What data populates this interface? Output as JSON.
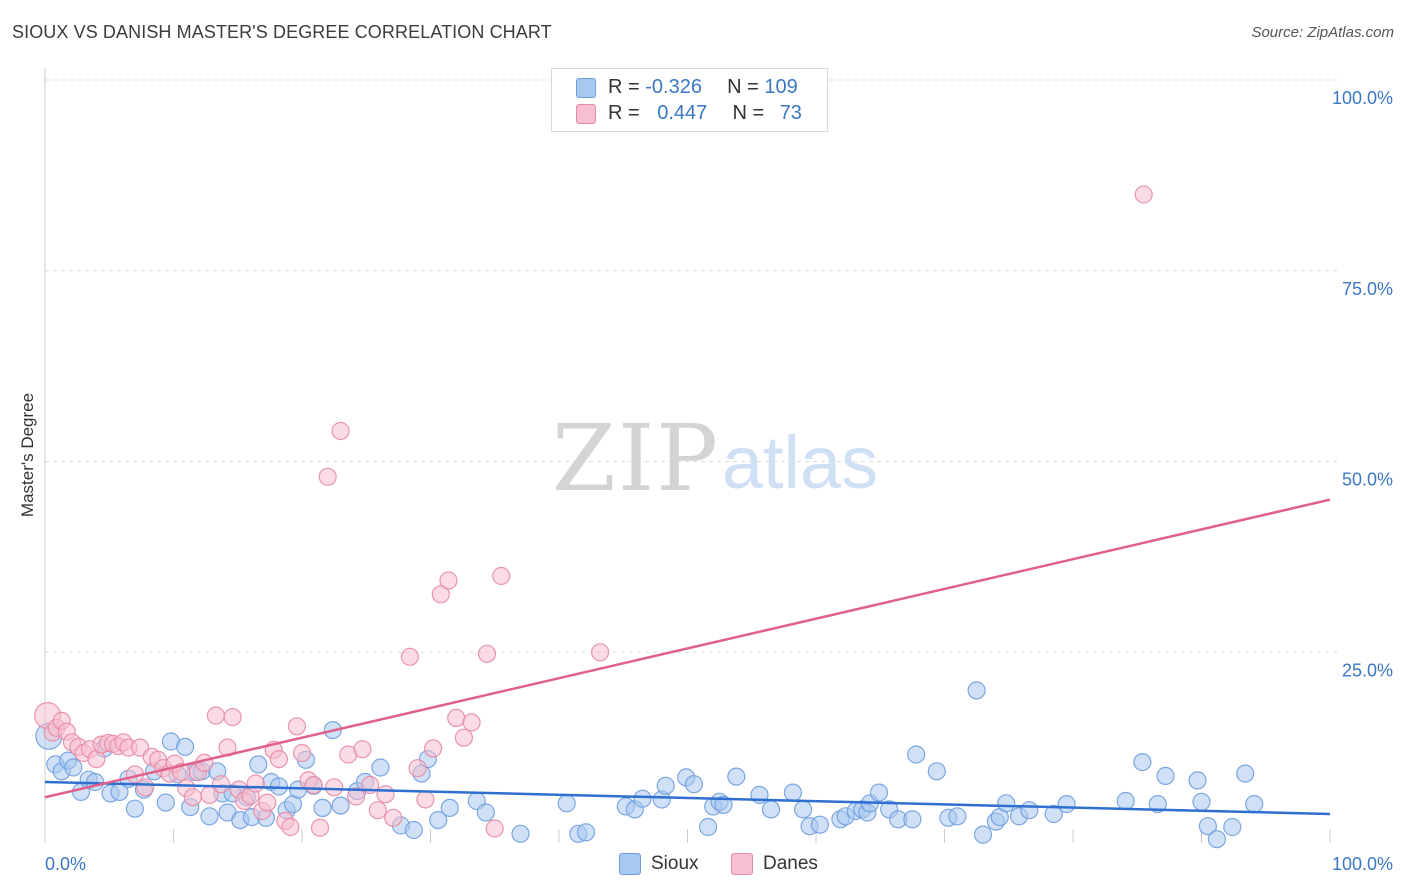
{
  "title": "SIOUX VS DANISH MASTER'S DEGREE CORRELATION CHART",
  "source": "Source: ZipAtlas.com",
  "watermark": {
    "zip": "ZIP",
    "atlas": "atlas"
  },
  "legend": {
    "rows": [
      {
        "r_label": "R =",
        "r_value": "-0.326",
        "n_label": "N =",
        "n_value": "109",
        "color": "#a9c8f0",
        "border": "#6f9fde"
      },
      {
        "r_label": "R =",
        "r_value": "0.447",
        "n_label": "N =",
        "n_value": "73",
        "color": "#f7bfd0",
        "border": "#e889a6"
      }
    ]
  },
  "bottom_legend": [
    {
      "label": "Sioux",
      "color": "#a9c8f0",
      "border": "#6f9fde"
    },
    {
      "label": "Danes",
      "color": "#f7bfd0",
      "border": "#e889a6"
    }
  ],
  "chart_data": {
    "type": "scatter",
    "title": "SIOUX VS DANISH MASTER'S DEGREE CORRELATION CHART",
    "xlabel": "",
    "ylabel": "Master's Degree",
    "xlim": [
      0,
      100
    ],
    "ylim": [
      0,
      100
    ],
    "x_tick_labels": [
      "0.0%",
      "100.0%"
    ],
    "y_ticks": [
      25,
      50,
      75,
      100
    ],
    "y_tick_labels": [
      "25.0%",
      "50.0%",
      "75.0%",
      "100.0%"
    ],
    "grid": true,
    "series": [
      {
        "name": "Sioux",
        "color": "#6f9fde",
        "fill": "#a9c8f0",
        "trend": [
          [
            0,
            8.0
          ],
          [
            100,
            3.8
          ]
        ],
        "points": [
          [
            0.3,
            14.0
          ],
          [
            0.8,
            10.3
          ],
          [
            1.3,
            9.4
          ],
          [
            1.8,
            10.8
          ],
          [
            2.2,
            9.9
          ],
          [
            2.8,
            6.7
          ],
          [
            3.4,
            8.3
          ],
          [
            3.9,
            8.0
          ],
          [
            4.6,
            12.4
          ],
          [
            5.1,
            6.5
          ],
          [
            5.8,
            6.7
          ],
          [
            6.5,
            8.4
          ],
          [
            7.0,
            4.5
          ],
          [
            7.7,
            7.0
          ],
          [
            8.5,
            9.4
          ],
          [
            9.4,
            5.3
          ],
          [
            9.8,
            13.3
          ],
          [
            10.3,
            9.0
          ],
          [
            10.9,
            12.6
          ],
          [
            11.3,
            4.7
          ],
          [
            11.7,
            9.3
          ],
          [
            12.2,
            9.4
          ],
          [
            12.8,
            3.5
          ],
          [
            13.4,
            9.4
          ],
          [
            13.8,
            6.5
          ],
          [
            14.2,
            4.0
          ],
          [
            14.6,
            6.5
          ],
          [
            15.2,
            3.0
          ],
          [
            15.7,
            6.0
          ],
          [
            16.1,
            3.4
          ],
          [
            16.6,
            10.3
          ],
          [
            17.2,
            3.3
          ],
          [
            17.6,
            8.0
          ],
          [
            18.2,
            7.4
          ],
          [
            18.8,
            4.3
          ],
          [
            19.3,
            5.1
          ],
          [
            19.7,
            7.0
          ],
          [
            20.3,
            10.9
          ],
          [
            20.9,
            7.5
          ],
          [
            21.6,
            4.6
          ],
          [
            22.4,
            14.8
          ],
          [
            23.0,
            4.9
          ],
          [
            24.3,
            6.8
          ],
          [
            24.9,
            8.0
          ],
          [
            26.1,
            9.9
          ],
          [
            27.7,
            2.3
          ],
          [
            28.7,
            1.7
          ],
          [
            29.3,
            9.1
          ],
          [
            29.8,
            11.0
          ],
          [
            30.6,
            3.0
          ],
          [
            31.5,
            4.6
          ],
          [
            33.6,
            5.5
          ],
          [
            34.3,
            4.0
          ],
          [
            37.0,
            1.2
          ],
          [
            40.6,
            5.2
          ],
          [
            41.5,
            1.2
          ],
          [
            42.1,
            1.4
          ],
          [
            45.2,
            4.8
          ],
          [
            45.9,
            4.4
          ],
          [
            46.5,
            5.8
          ],
          [
            48.0,
            5.7
          ],
          [
            48.3,
            7.5
          ],
          [
            49.9,
            8.6
          ],
          [
            50.5,
            7.7
          ],
          [
            51.6,
            2.1
          ],
          [
            52.0,
            4.8
          ],
          [
            52.5,
            5.4
          ],
          [
            52.8,
            5.0
          ],
          [
            53.8,
            8.7
          ],
          [
            55.6,
            6.3
          ],
          [
            56.5,
            4.4
          ],
          [
            58.2,
            6.6
          ],
          [
            59.0,
            4.4
          ],
          [
            59.5,
            2.2
          ],
          [
            60.3,
            2.4
          ],
          [
            61.9,
            3.1
          ],
          [
            62.3,
            3.5
          ],
          [
            63.1,
            4.2
          ],
          [
            63.6,
            4.4
          ],
          [
            64.0,
            4.0
          ],
          [
            64.2,
            5.2
          ],
          [
            64.9,
            6.6
          ],
          [
            65.7,
            4.4
          ],
          [
            66.4,
            3.1
          ],
          [
            67.5,
            3.1
          ],
          [
            67.8,
            11.6
          ],
          [
            69.4,
            9.4
          ],
          [
            70.3,
            3.3
          ],
          [
            71.0,
            3.5
          ],
          [
            72.5,
            20.0
          ],
          [
            73.0,
            1.1
          ],
          [
            74.0,
            2.8
          ],
          [
            74.3,
            3.4
          ],
          [
            74.8,
            5.2
          ],
          [
            75.8,
            3.5
          ],
          [
            76.6,
            4.3
          ],
          [
            78.5,
            3.8
          ],
          [
            79.5,
            5.1
          ],
          [
            84.1,
            5.5
          ],
          [
            85.4,
            10.6
          ],
          [
            86.6,
            5.1
          ],
          [
            87.2,
            8.8
          ],
          [
            89.7,
            8.2
          ],
          [
            90.0,
            5.4
          ],
          [
            90.5,
            2.2
          ],
          [
            91.2,
            0.5
          ],
          [
            92.4,
            2.1
          ],
          [
            93.4,
            9.1
          ],
          [
            94.1,
            5.1
          ]
        ]
      },
      {
        "name": "Danes",
        "color": "#e889a6",
        "fill": "#f7bfd0",
        "trend": [
          [
            0,
            6.0
          ],
          [
            100,
            45.0
          ]
        ],
        "points": [
          [
            0.2,
            16.7
          ],
          [
            0.6,
            14.5
          ],
          [
            0.9,
            15.1
          ],
          [
            1.3,
            16.0
          ],
          [
            1.7,
            14.6
          ],
          [
            2.1,
            13.2
          ],
          [
            2.6,
            12.6
          ],
          [
            3.0,
            11.8
          ],
          [
            3.5,
            12.3
          ],
          [
            4.0,
            11.0
          ],
          [
            4.4,
            12.9
          ],
          [
            4.9,
            13.1
          ],
          [
            5.3,
            13.0
          ],
          [
            5.7,
            12.7
          ],
          [
            6.1,
            13.2
          ],
          [
            6.5,
            12.5
          ],
          [
            7.0,
            9.0
          ],
          [
            7.4,
            12.5
          ],
          [
            7.8,
            7.3
          ],
          [
            8.3,
            11.3
          ],
          [
            8.8,
            10.9
          ],
          [
            9.2,
            9.8
          ],
          [
            9.7,
            9.1
          ],
          [
            10.1,
            10.4
          ],
          [
            10.6,
            9.3
          ],
          [
            11.0,
            7.2
          ],
          [
            11.5,
            6.0
          ],
          [
            11.9,
            9.3
          ],
          [
            12.4,
            10.5
          ],
          [
            12.8,
            6.3
          ],
          [
            13.3,
            16.7
          ],
          [
            13.7,
            7.7
          ],
          [
            14.2,
            12.5
          ],
          [
            14.6,
            16.5
          ],
          [
            15.1,
            7.0
          ],
          [
            15.5,
            5.5
          ],
          [
            16.0,
            6.2
          ],
          [
            16.4,
            7.8
          ],
          [
            16.9,
            4.2
          ],
          [
            17.3,
            5.3
          ],
          [
            17.8,
            12.2
          ],
          [
            18.2,
            11.0
          ],
          [
            18.7,
            2.9
          ],
          [
            19.1,
            2.1
          ],
          [
            19.6,
            15.3
          ],
          [
            20.0,
            11.8
          ],
          [
            20.5,
            8.2
          ],
          [
            20.9,
            7.6
          ],
          [
            21.4,
            2.0
          ],
          [
            22.0,
            48.0
          ],
          [
            22.5,
            7.3
          ],
          [
            23.0,
            54.0
          ],
          [
            23.6,
            11.6
          ],
          [
            24.2,
            6.1
          ],
          [
            24.7,
            12.3
          ],
          [
            25.3,
            7.6
          ],
          [
            25.9,
            4.3
          ],
          [
            26.5,
            6.4
          ],
          [
            27.1,
            3.3
          ],
          [
            28.4,
            24.4
          ],
          [
            29.0,
            9.8
          ],
          [
            29.6,
            5.7
          ],
          [
            30.2,
            12.4
          ],
          [
            30.8,
            32.6
          ],
          [
            31.4,
            34.4
          ],
          [
            32.0,
            16.4
          ],
          [
            32.6,
            13.8
          ],
          [
            33.2,
            15.8
          ],
          [
            34.4,
            24.8
          ],
          [
            35.0,
            1.9
          ],
          [
            35.5,
            35.0
          ],
          [
            43.2,
            25.0
          ],
          [
            85.5,
            85.0
          ]
        ]
      }
    ]
  }
}
